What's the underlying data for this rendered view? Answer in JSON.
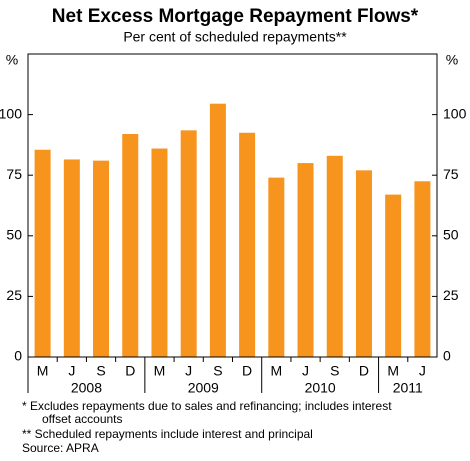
{
  "chart_data": {
    "type": "bar",
    "title": "Net Excess Mortgage Repayment Flows*",
    "subtitle": "Per cent of scheduled repayments**",
    "y_unit": "%",
    "categories": [
      "M",
      "J",
      "S",
      "D",
      "M",
      "J",
      "S",
      "D",
      "M",
      "J",
      "S",
      "D",
      "M",
      "J"
    ],
    "years": [
      "2008",
      "2009",
      "2010",
      "2011"
    ],
    "values": [
      85.5,
      81.5,
      81,
      92,
      86,
      93.5,
      104.5,
      92.5,
      74,
      80,
      83,
      77,
      67,
      72.5
    ],
    "color": "#f7941d",
    "ylim": [
      0,
      125
    ],
    "yticks": [
      0,
      25,
      50,
      75,
      100
    ],
    "grid": false,
    "notes": [
      "*  Excludes repayments due to sales and refinancing; includes interest",
      "offset accounts",
      "** Scheduled repayments include interest and principal",
      "Source: APRA"
    ]
  }
}
